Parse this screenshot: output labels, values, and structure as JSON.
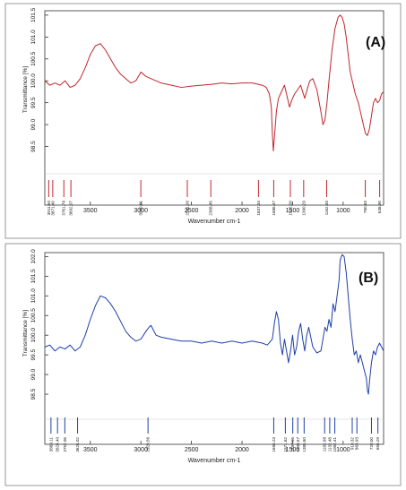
{
  "chart_data": [
    {
      "type": "line",
      "panel_label": "(A)",
      "xlabel": "Wavenumber cm-1",
      "ylabel": "Transmittance [%]",
      "x_reversed": true,
      "xlim": [
        3950,
        600
      ],
      "ylim": [
        98.0,
        101.6
      ],
      "x_ticks": [
        3500,
        3000,
        2500,
        2000,
        1500,
        1000
      ],
      "x_tick_labels": [
        "3500",
        "3000",
        "2500",
        "2000",
        "1500",
        "1000"
      ],
      "y_ticks": [
        98.5,
        99.0,
        99.5,
        100.0,
        100.5,
        101.0,
        101.5
      ],
      "y_tick_labels": [
        "98.5",
        "99.0",
        "99.5",
        "100.0",
        "100.5",
        "101.0",
        "101.5"
      ],
      "color": "#c0272d",
      "series": [
        {
          "x": [
            3950,
            3900,
            3850,
            3800,
            3750,
            3700,
            3650,
            3600,
            3550,
            3500,
            3450,
            3400,
            3350,
            3300,
            3250,
            3200,
            3150,
            3100,
            3050,
            3000,
            2950,
            2900,
            2850,
            2800,
            2700,
            2600,
            2500,
            2400,
            2300,
            2200,
            2100,
            2000,
            1900,
            1800,
            1760,
            1730,
            1710,
            1700,
            1690,
            1680,
            1660,
            1640,
            1600,
            1580,
            1560,
            1530,
            1510,
            1480,
            1450,
            1420,
            1400,
            1380,
            1350,
            1330,
            1300,
            1260,
            1220,
            1200,
            1180,
            1160,
            1140,
            1110,
            1080,
            1050,
            1030,
            1010,
            990,
            970,
            950,
            930,
            900,
            880,
            850,
            830,
            800,
            780,
            760,
            740,
            720,
            700,
            680,
            660,
            640,
            620,
            600
          ],
          "y": [
            100.0,
            99.9,
            99.95,
            99.9,
            100.0,
            99.85,
            99.9,
            100.05,
            100.3,
            100.6,
            100.8,
            100.85,
            100.7,
            100.5,
            100.3,
            100.15,
            100.05,
            99.95,
            100.0,
            100.2,
            100.1,
            100.05,
            100.0,
            99.95,
            99.9,
            99.85,
            99.88,
            99.9,
            99.92,
            99.95,
            99.93,
            99.95,
            99.95,
            99.9,
            99.85,
            99.7,
            99.4,
            98.8,
            98.4,
            98.7,
            99.3,
            99.6,
            99.8,
            99.9,
            99.7,
            99.4,
            99.55,
            99.7,
            99.8,
            99.9,
            99.75,
            99.6,
            99.85,
            100.0,
            100.05,
            99.8,
            99.3,
            99.0,
            99.1,
            99.5,
            100.0,
            100.7,
            101.2,
            101.45,
            101.5,
            101.45,
            101.3,
            101.0,
            100.6,
            100.2,
            99.9,
            99.7,
            99.5,
            99.3,
            99.0,
            98.8,
            98.75,
            98.9,
            99.2,
            99.5,
            99.6,
            99.5,
            99.55,
            99.7,
            99.75
          ]
        }
      ],
      "peak_positions": [
        3911.6,
        3871.4,
        3761.79,
        3692.07,
        3000.61,
        2541.0,
        2308.45,
        1837.34,
        1686.47,
        1522.0,
        1390.29,
        1162.93,
        780.83,
        638.9
      ],
      "peak_labels": [
        "3911.60",
        "3871.40",
        "3761.79",
        "3692.07",
        "3000.61",
        "2541.00",
        "2308.45",
        "1837.34",
        "1686.47",
        "1522.00",
        "1390.29",
        "1162.93",
        "780.83",
        "638.90"
      ]
    },
    {
      "type": "line",
      "panel_label": "(B)",
      "xlabel": "Wavenumber cm-1",
      "ylabel": "Transmittance [%]",
      "x_reversed": true,
      "xlim": [
        3950,
        600
      ],
      "ylim": [
        98.0,
        102.1
      ],
      "x_ticks": [
        3500,
        3000,
        2500,
        2000,
        1500,
        1000
      ],
      "x_tick_labels": [
        "3500",
        "3000",
        "2500",
        "2000",
        "1500",
        "1000"
      ],
      "y_ticks": [
        98.5,
        99.0,
        99.5,
        100.0,
        100.5,
        101.0,
        101.5,
        102.0
      ],
      "y_tick_labels": [
        "98.5",
        "99.0",
        "99.5",
        "100.0",
        "100.5",
        "101.0",
        "101.5",
        "102.0"
      ],
      "color": "#1f3fa8",
      "series": [
        {
          "x": [
            3950,
            3900,
            3850,
            3800,
            3750,
            3700,
            3650,
            3600,
            3550,
            3500,
            3450,
            3400,
            3350,
            3300,
            3250,
            3200,
            3150,
            3100,
            3050,
            3000,
            2950,
            2920,
            2900,
            2880,
            2850,
            2800,
            2700,
            2600,
            2500,
            2400,
            2300,
            2200,
            2100,
            2000,
            1900,
            1800,
            1750,
            1700,
            1680,
            1660,
            1640,
            1620,
            1600,
            1580,
            1560,
            1540,
            1520,
            1500,
            1480,
            1460,
            1440,
            1420,
            1400,
            1380,
            1360,
            1340,
            1300,
            1260,
            1220,
            1200,
            1180,
            1160,
            1140,
            1120,
            1100,
            1080,
            1060,
            1040,
            1030,
            1010,
            990,
            970,
            950,
            930,
            910,
            890,
            870,
            850,
            830,
            810,
            790,
            770,
            760,
            750,
            740,
            720,
            700,
            680,
            660,
            640,
            620,
            600
          ],
          "y": [
            99.7,
            99.75,
            99.6,
            99.7,
            99.65,
            99.75,
            99.6,
            99.7,
            100.0,
            100.4,
            100.75,
            101.0,
            100.95,
            100.8,
            100.6,
            100.35,
            100.1,
            99.95,
            99.85,
            99.9,
            100.1,
            100.2,
            100.25,
            100.15,
            100.0,
            99.95,
            99.9,
            99.85,
            99.85,
            99.8,
            99.85,
            99.8,
            99.85,
            99.8,
            99.85,
            99.8,
            99.75,
            99.9,
            100.3,
            100.6,
            100.4,
            99.8,
            99.5,
            99.9,
            99.6,
            99.3,
            99.6,
            100.0,
            99.5,
            99.7,
            100.1,
            100.3,
            99.9,
            99.6,
            100.0,
            100.2,
            99.7,
            99.55,
            99.6,
            99.9,
            100.2,
            100.1,
            100.4,
            100.2,
            100.8,
            100.6,
            101.0,
            101.4,
            101.9,
            102.05,
            102.0,
            101.6,
            101.0,
            100.4,
            99.9,
            99.5,
            99.6,
            99.3,
            99.5,
            99.3,
            99.1,
            98.9,
            98.6,
            98.5,
            98.8,
            99.3,
            99.6,
            99.5,
            99.7,
            99.8,
            99.7,
            99.6
          ]
        }
      ],
      "peak_positions": [
        3889.11,
        3824.4,
        3752.06,
        3626.02,
        2929.56,
        1686.23,
        1571.62,
        1497.96,
        1448.57,
        1385.8,
        1182.98,
        1132.48,
        1082.41,
        910.32,
        863.93,
        720.0,
        656.29
      ],
      "peak_labels": [
        "3889.11",
        "3824.40",
        "3752.06",
        "3626.02",
        "2929.56",
        "1686.23",
        "1571.62",
        "1497.96",
        "1448.57",
        "1385.80",
        "1182.98",
        "1132.48",
        "1082.41",
        "910.32",
        "863.93",
        "720.00",
        "656.29"
      ]
    }
  ]
}
